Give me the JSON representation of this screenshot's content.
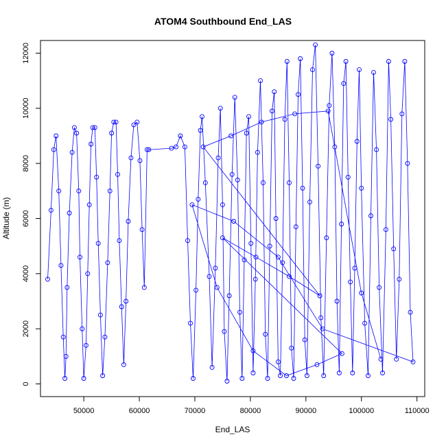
{
  "chart_data": {
    "type": "line",
    "title": "ATOM4 Southbound End_LAS",
    "xlabel": "End_LAS",
    "ylabel": "Altitude (m)",
    "xlim": [
      42200,
      111400
    ],
    "ylim": [
      -460,
      12460
    ],
    "x_ticks": [
      50000,
      60000,
      70000,
      80000,
      90000,
      100000,
      110000
    ],
    "y_ticks": [
      0,
      2000,
      4000,
      6000,
      8000,
      10000,
      12000
    ],
    "x_tick_labels": [
      "50000",
      "60000",
      "70000",
      "80000",
      "90000",
      "100000",
      "110000"
    ],
    "y_tick_labels": [
      "0",
      "2000",
      "4000",
      "6000",
      "8000",
      "10000",
      "12000"
    ],
    "grid": false,
    "legend": "none",
    "series_color": "#0000ff",
    "marker": "open-circle",
    "series": [
      {
        "x": [
          43500,
          44100,
          44600,
          45000,
          45500,
          45900,
          46300,
          46600,
          46800,
          47000,
          47400,
          47900,
          48300,
          48700,
          49100,
          49300,
          49700,
          50000,
          50400,
          50700,
          51000,
          51300,
          51600,
          52000,
          52300,
          52600,
          53000,
          53400,
          53800,
          54300,
          54700,
          55000,
          55400,
          55800,
          56100,
          56400,
          56800,
          57200,
          57600,
          58000,
          58500,
          59000,
          59600,
          60100,
          60500,
          60900,
          61400,
          61700,
          65800,
          66600,
          67400,
          68200,
          68700,
          69200,
          69700,
          70200,
          70600,
          71000,
          71300,
          71900,
          72600,
          73100,
          73700,
          74200,
          74600,
          75000,
          75300,
          75800,
          76200,
          76700,
          77200,
          77700,
          78100,
          78500,
          78900,
          79300,
          79700,
          80100,
          80500,
          80900,
          81300,
          81800,
          82300,
          82700,
          83100,
          83500,
          83900,
          84300,
          84600,
          85000,
          85400,
          85800,
          86200,
          86600,
          87000,
          87400,
          87800,
          88200,
          88600,
          89000,
          89400,
          89800,
          90200,
          90700,
          91200,
          91700,
          92200,
          92700,
          93200,
          93700,
          94200,
          94700,
          95200,
          95600,
          96000,
          96400,
          96800,
          97200,
          97600,
          98000,
          98400,
          98800,
          99200,
          99600,
          100000,
          100600,
          101200,
          101700,
          102200,
          102700,
          103200,
          103800,
          104400,
          104900,
          105300,
          105800,
          106300,
          106800,
          107300,
          107800,
          108300,
          108800,
          109300,
          93000,
          85000,
          77000,
          69500,
          74000,
          80500,
          86500,
          92000,
          96500,
          75000,
          81000,
          87000,
          92500,
          71500,
          76500,
          82000,
          88000,
          94000,
          100000,
          103500
        ],
        "y": [
          3800,
          6300,
          8500,
          9000,
          7000,
          4300,
          1700,
          200,
          1000,
          3500,
          6200,
          8400,
          9300,
          9100,
          7000,
          4600,
          2000,
          200,
          1400,
          4000,
          6500,
          8700,
          9300,
          9300,
          7500,
          5100,
          2500,
          300,
          1700,
          4400,
          7000,
          9100,
          9500,
          9500,
          7600,
          5200,
          2800,
          700,
          3000,
          5900,
          8200,
          9400,
          9500,
          8100,
          5600,
          3500,
          8500,
          8500,
          8550,
          8600,
          9000,
          8600,
          5200,
          2200,
          200,
          3400,
          6700,
          9200,
          9700,
          7300,
          3900,
          600,
          4200,
          8200,
          10000,
          6500,
          1900,
          100,
          3200,
          7600,
          10400,
          7400,
          2600,
          200,
          4500,
          9100,
          9700,
          5100,
          400,
          3800,
          8400,
          11000,
          7300,
          1800,
          200,
          5000,
          9900,
          10600,
          6000,
          800,
          300,
          4400,
          9600,
          11700,
          7300,
          1300,
          200,
          5700,
          10500,
          11800,
          7100,
          1600,
          300,
          6600,
          11400,
          12300,
          7900,
          2400,
          300,
          5300,
          10100,
          12000,
          8600,
          3000,
          400,
          5800,
          10900,
          11700,
          7500,
          3700,
          400,
          4200,
          8800,
          11400,
          7100,
          2200,
          300,
          6100,
          11300,
          8500,
          3500,
          400,
          5600,
          11700,
          9600,
          4900,
          900,
          3800,
          9800,
          11700,
          8000,
          2600,
          800,
          2000,
          4600,
          5900,
          6500,
          3500,
          1200,
          300,
          700,
          1100,
          5300,
          4600,
          3900,
          3200,
          8600,
          9000,
          9500,
          9800,
          9900,
          3300,
          900
        ]
      }
    ]
  }
}
